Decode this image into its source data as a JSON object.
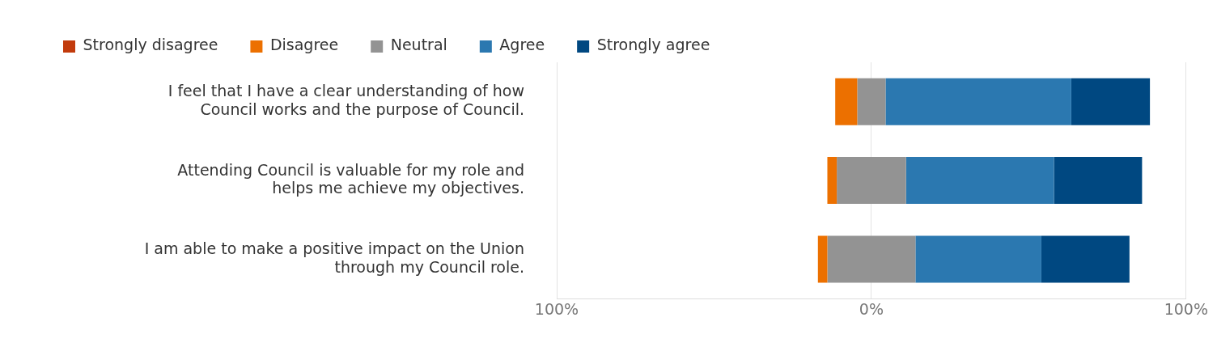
{
  "chart_data": {
    "type": "bar",
    "orientation": "horizontal",
    "categories": [
      "I feel that I have a clear understanding of how Council works and the purpose of Council.",
      " Attending Council is valuable for my role and helps me achieve my objectives.",
      "I am able to make a positive impact on the Union through my Council role."
    ],
    "series": [
      {
        "name": "Strongly disagree",
        "color": "#c23b0c",
        "values": [
          0,
          0,
          0
        ]
      },
      {
        "name": "Disagree",
        "color": "#ec7000",
        "values": [
          7,
          3,
          3
        ],
        "base": [
          -11.5,
          -14,
          -17
        ]
      },
      {
        "name": "Neutral",
        "color": "#939393",
        "values": [
          9,
          22,
          28
        ],
        "base": [
          -4.5,
          -11,
          -14
        ]
      },
      {
        "name": "Agree",
        "color": "#2b78b0",
        "values": [
          59,
          47,
          40
        ],
        "base": [
          4.5,
          11,
          14
        ]
      },
      {
        "name": "Strongly agree",
        "color": "#004881",
        "values": [
          25,
          28,
          28
        ],
        "base": [
          63.5,
          58,
          54
        ]
      }
    ],
    "xlim": [
      -100,
      100
    ],
    "xticks": [
      {
        "value": -100,
        "label": "100%"
      },
      {
        "value": 0,
        "label": "0%"
      },
      {
        "value": 100,
        "label": "100%"
      }
    ],
    "grid": "x",
    "legend": "top left"
  }
}
